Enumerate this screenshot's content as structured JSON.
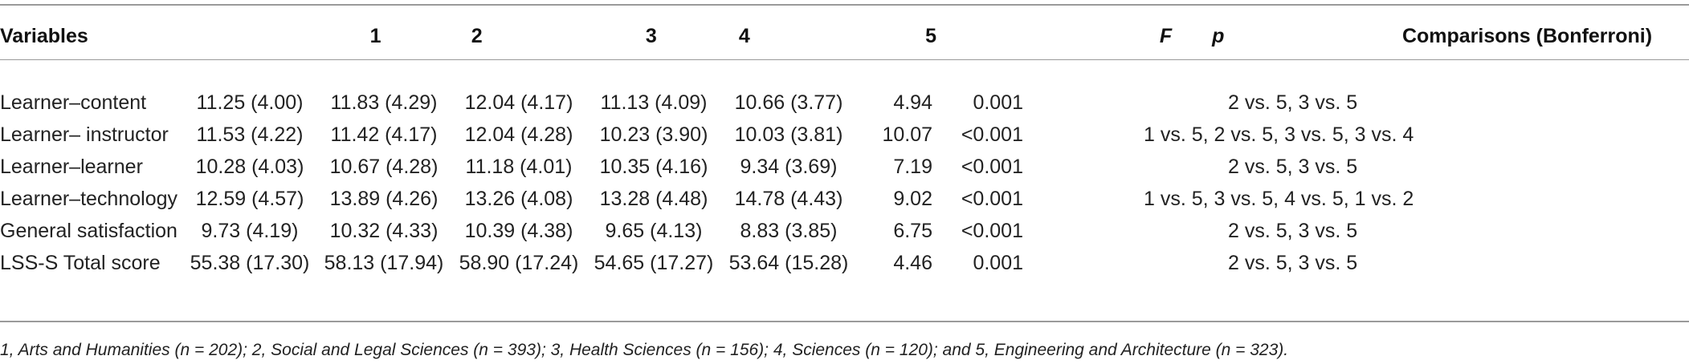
{
  "table": {
    "headers": {
      "variables": "Variables",
      "g1": "1",
      "g2": "2",
      "g3": "3",
      "g4": "4",
      "g5": "5",
      "f": "F",
      "p": "p",
      "comparisons": "Comparisons (Bonferroni)"
    },
    "rows": [
      {
        "variable": "Learner–content",
        "g1": "11.25 (4.00)",
        "g2": "11.83 (4.29)",
        "g3": "12.04 (4.17)",
        "g4": "11.13 (4.09)",
        "g5": "10.66 (3.77)",
        "f": "4.94",
        "p": "0.001",
        "comparisons": "2 vs. 5, 3 vs. 5"
      },
      {
        "variable": "Learner– instructor",
        "g1": "11.53 (4.22)",
        "g2": "11.42 (4.17)",
        "g3": "12.04 (4.28)",
        "g4": "10.23 (3.90)",
        "g5": "10.03 (3.81)",
        "f": "10.07",
        "p": "<0.001",
        "comparisons": "1 vs. 5, 2 vs. 5, 3 vs. 5, 3 vs. 4"
      },
      {
        "variable": "Learner–learner",
        "g1": "10.28 (4.03)",
        "g2": "10.67 (4.28)",
        "g3": "11.18 (4.01)",
        "g4": "10.35 (4.16)",
        "g5": "9.34 (3.69)",
        "f": "7.19",
        "p": "<0.001",
        "comparisons": "2 vs. 5, 3 vs. 5"
      },
      {
        "variable": "Learner–technology",
        "g1": "12.59 (4.57)",
        "g2": "13.89 (4.26)",
        "g3": "13.26 (4.08)",
        "g4": "13.28 (4.48)",
        "g5": "14.78 (4.43)",
        "f": "9.02",
        "p": "<0.001",
        "comparisons": "1 vs. 5, 3 vs. 5, 4 vs. 5, 1 vs. 2"
      },
      {
        "variable": "General satisfaction",
        "g1": "9.73 (4.19)",
        "g2": "10.32 (4.33)",
        "g3": "10.39 (4.38)",
        "g4": "9.65 (4.13)",
        "g5": "8.83 (3.85)",
        "f": "6.75",
        "p": "<0.001",
        "comparisons": "2 vs. 5, 3 vs. 5"
      },
      {
        "variable": "LSS-S Total score",
        "g1": "55.38 (17.30)",
        "g2": "58.13 (17.94)",
        "g3": "58.90 (17.24)",
        "g4": "54.65 (17.27)",
        "g5": "53.64 (15.28)",
        "f": "4.46",
        "p": "0.001",
        "comparisons": "2 vs. 5, 3 vs. 5"
      }
    ]
  },
  "footnote": "1, Arts and Humanities (n = 202); 2, Social and Legal Sciences (n = 393); 3, Health Sciences (n = 156); 4, Sciences (n = 120); and 5, Engineering and Architecture (n = 323)."
}
